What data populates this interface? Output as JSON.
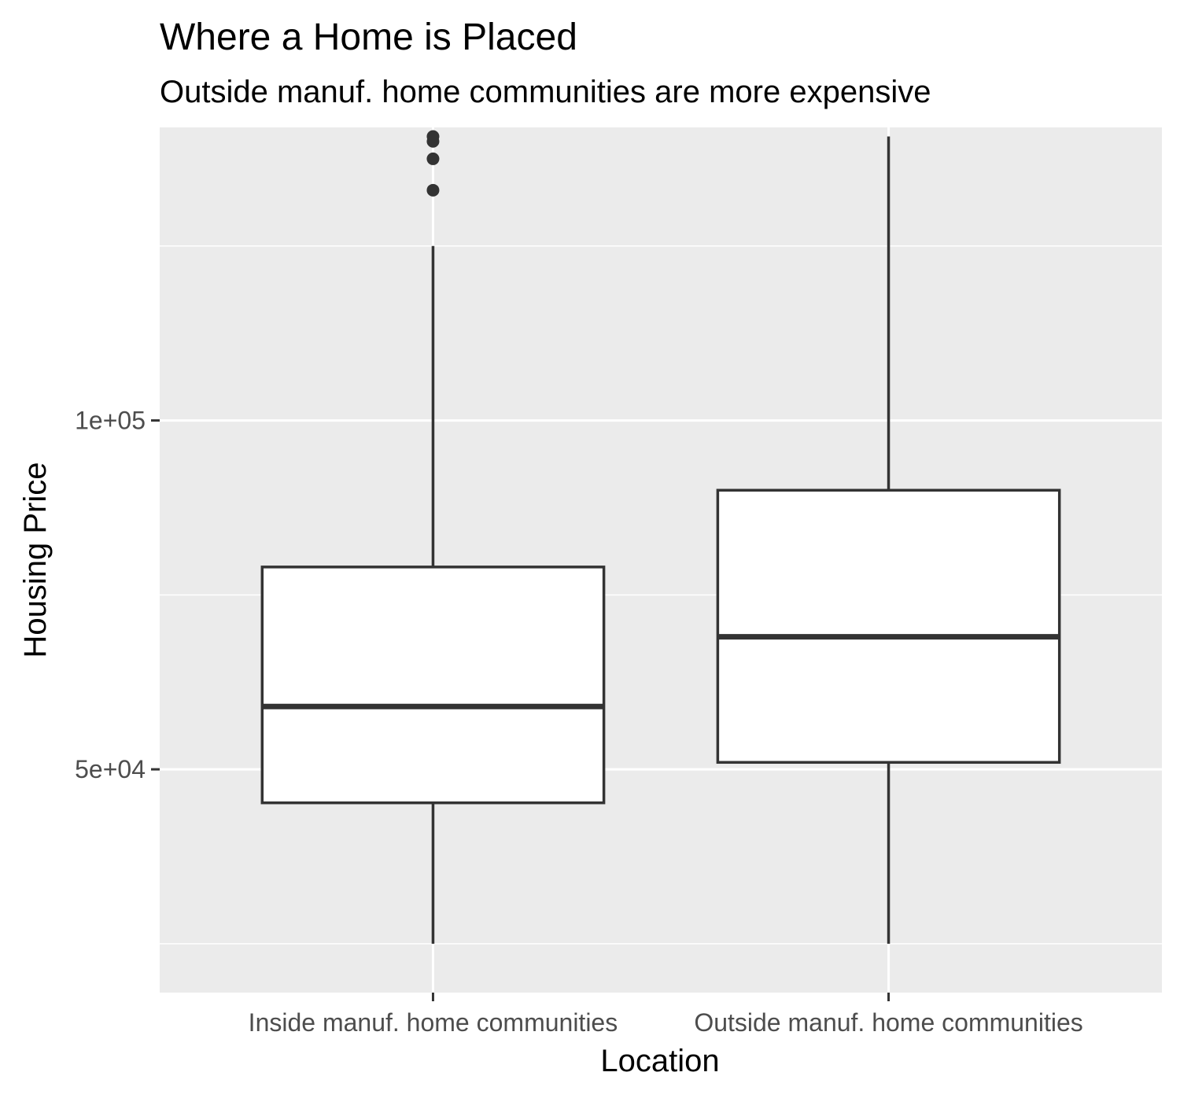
{
  "chart_data": {
    "type": "box",
    "title": "Where a Home is Placed",
    "subtitle": "Outside manuf. home communities are more expensive",
    "xlabel": "Location",
    "ylabel": "Housing Price",
    "categories": [
      "Inside manuf. home communities",
      "Outside manuf. home communities"
    ],
    "y_ticks": [
      {
        "value": 50000,
        "label": "5e+04"
      },
      {
        "value": 100000,
        "label": "1e+05"
      }
    ],
    "y_minor_gridlines": [
      25000,
      75000,
      125000
    ],
    "ylim": [
      18000,
      142000
    ],
    "boxes": [
      {
        "category": "Inside manuf. home communities",
        "whisker_low": 25000,
        "q1": 45200,
        "median": 59000,
        "q3": 79000,
        "whisker_high": 125000,
        "outliers": [
          133000,
          137500,
          140000,
          140700
        ]
      },
      {
        "category": "Outside manuf. home communities",
        "whisker_low": 25000,
        "q1": 51000,
        "median": 69000,
        "q3": 90000,
        "whisker_high": 140700,
        "outliers": []
      }
    ],
    "colors": {
      "panel_background": "#ebebeb",
      "grid": "#ffffff",
      "box_fill": "#ffffff",
      "box_stroke": "#333333",
      "tick": "#333333"
    },
    "grid": true,
    "legend": "none"
  }
}
